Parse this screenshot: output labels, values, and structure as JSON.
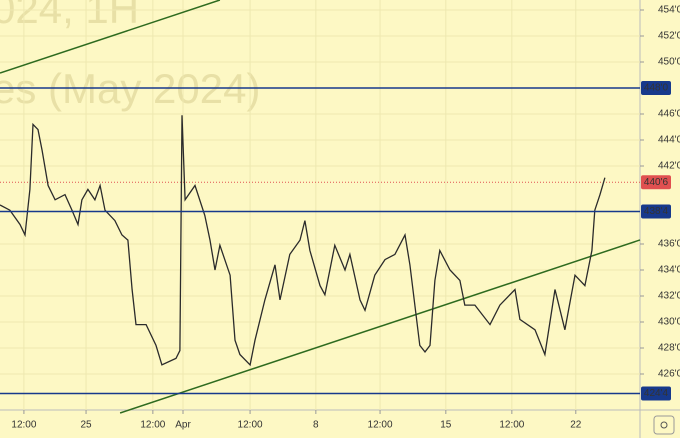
{
  "chart_data": {
    "type": "line",
    "watermark": [
      "024, 1H",
      "es (May 2024)"
    ],
    "x": [
      0,
      0.38,
      0.77,
      0.96,
      1.15,
      1.27,
      1.46,
      1.62,
      1.85,
      2.12,
      2.5,
      2.77,
      3.0,
      3.15,
      3.38,
      3.65,
      3.85,
      4.04,
      4.42,
      4.69,
      4.92,
      5.08,
      5.23,
      5.62,
      6.0,
      6.23,
      6.77,
      6.92,
      7.0,
      7.12,
      7.5,
      7.88,
      8.08,
      8.27,
      8.46,
      8.85,
      9.04,
      9.23,
      9.62,
      9.81,
      10.19,
      10.58,
      10.77,
      11.15,
      11.54,
      11.73,
      11.92,
      12.31,
      12.5,
      12.88,
      13.27,
      13.46,
      13.85,
      14.04,
      14.42,
      14.81,
      15.19,
      15.58,
      15.77,
      16.15,
      16.35,
      16.54,
      16.73,
      16.92,
      17.31,
      17.69,
      17.88,
      18.27,
      18.85,
      19.23,
      19.81,
      20.0,
      20.58,
      20.96,
      21.35,
      21.73,
      22.12,
      22.5,
      22.77,
      22.88,
      23.08,
      23.27
    ],
    "series": [
      {
        "color": "#2b2b2b",
        "values": [
          439.0,
          438.6,
          437.5,
          436.7,
          440.2,
          445.2,
          444.8,
          443.2,
          440.5,
          439.4,
          439.8,
          438.6,
          437.5,
          439.4,
          440.2,
          439.4,
          440.5,
          438.6,
          437.8,
          436.7,
          436.3,
          432.5,
          429.8,
          429.8,
          428.2,
          426.7,
          427.2,
          427.8,
          445.9,
          439.4,
          440.5,
          438.2,
          436.3,
          434.0,
          435.9,
          433.6,
          428.6,
          427.5,
          426.7,
          428.6,
          431.7,
          434.4,
          431.7,
          435.2,
          436.3,
          437.8,
          435.5,
          432.8,
          432.1,
          435.9,
          434.0,
          435.2,
          431.7,
          430.9,
          433.6,
          434.8,
          435.2,
          436.7,
          434.4,
          428.2,
          427.7,
          428.2,
          433.2,
          435.5,
          434.0,
          433.2,
          431.3,
          431.3,
          429.8,
          431.3,
          432.5,
          430.2,
          429.4,
          427.5,
          432.5,
          429.4,
          433.6,
          432.8,
          435.5,
          438.6,
          439.8,
          441.1
        ]
      }
    ],
    "xlim": [
      0,
      24.62
    ],
    "ylim": [
      423.23,
      454.77
    ],
    "xticks": [
      {
        "value": 0.92,
        "label": "12:00"
      },
      {
        "value": 3.31,
        "label": "25"
      },
      {
        "value": 5.88,
        "label": "12:00"
      },
      {
        "value": 7.04,
        "label": "Apr"
      },
      {
        "value": 9.62,
        "label": "12:00"
      },
      {
        "value": 12.15,
        "label": "8"
      },
      {
        "value": 14.62,
        "label": "12:00"
      },
      {
        "value": 17.15,
        "label": "15"
      },
      {
        "value": 19.69,
        "label": "12:00"
      },
      {
        "value": 22.15,
        "label": "22"
      }
    ],
    "yticks": [
      {
        "value": 454,
        "label": "454'0"
      },
      {
        "value": 452,
        "label": "452'0"
      },
      {
        "value": 450,
        "label": "450'0"
      },
      {
        "value": 446,
        "label": "446'0"
      },
      {
        "value": 444,
        "label": "444'0"
      },
      {
        "value": 442,
        "label": "442'0"
      },
      {
        "value": 436,
        "label": "436'0"
      },
      {
        "value": 434,
        "label": "434'0"
      },
      {
        "value": 432,
        "label": "432'0"
      },
      {
        "value": 430,
        "label": "430'0"
      },
      {
        "value": 428,
        "label": "428'0"
      },
      {
        "value": 426,
        "label": "426'0"
      }
    ],
    "grid": true,
    "levels": [
      {
        "value": 448,
        "label": "448'0",
        "color": "#17398c"
      },
      {
        "value": 438.5,
        "label": "438'4",
        "color": "#17398c"
      },
      {
        "value": 424.5,
        "label": "424'4",
        "color": "#17398c"
      }
    ],
    "current": {
      "value": 440.75,
      "label": "440'6",
      "color": "#e05050"
    },
    "trendlines": [
      {
        "x": [
          0,
          8.46
        ],
        "y": [
          449.15,
          454.77
        ],
        "color": "#2e6b1f"
      },
      {
        "x": [
          4.62,
          24.62
        ],
        "y": [
          423.0,
          436.31
        ],
        "color": "#2e6b1f"
      }
    ]
  }
}
